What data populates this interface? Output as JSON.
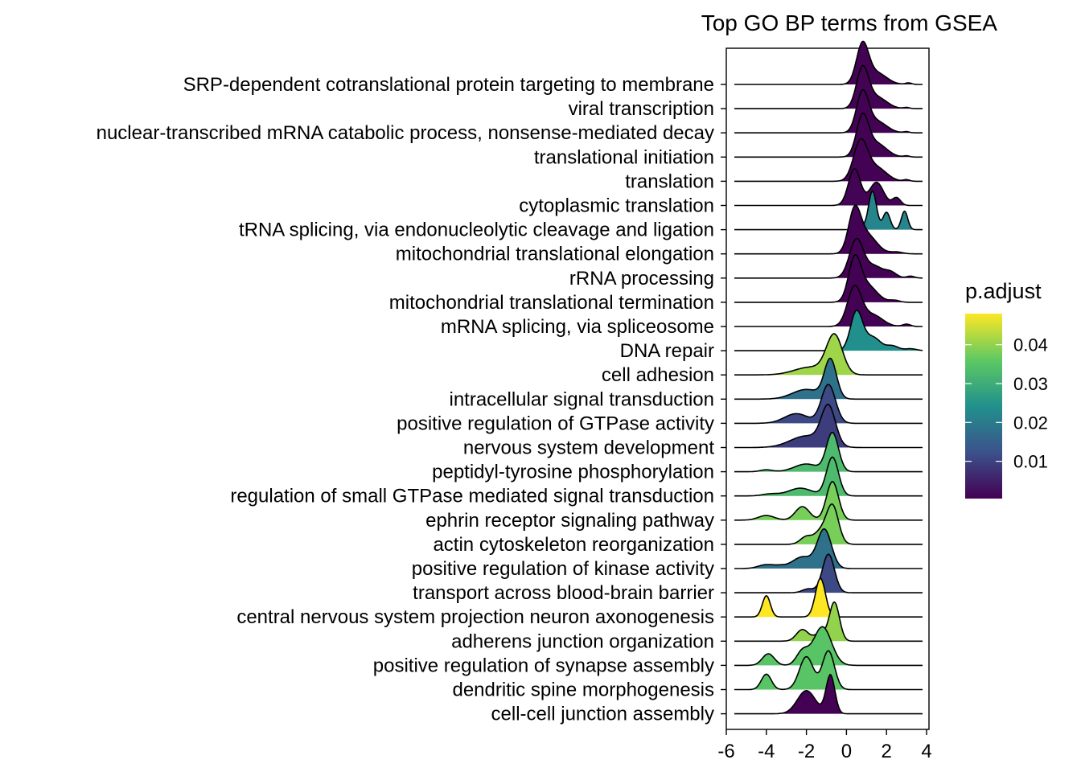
{
  "chart_data": {
    "type": "ridgeline",
    "title": "Top GO BP terms from GSEA",
    "xlabel": "",
    "ylabel": "",
    "xlim": [
      -6,
      4
    ],
    "x_ticks": [
      -6,
      -4,
      -2,
      0,
      2,
      4
    ],
    "x_tick_labels": [
      "-6",
      "-4",
      "-2",
      "0",
      "2",
      "4"
    ],
    "grid": false,
    "legend": {
      "title": "p.adjust",
      "position": "right",
      "colormap": "viridis",
      "range": [
        0.0004,
        0.048
      ],
      "ticks": [
        0.04,
        0.03,
        0.02,
        0.01
      ],
      "tick_labels": [
        "0.04",
        "0.03",
        "0.02",
        "0.01"
      ]
    },
    "series": [
      {
        "term": "SRP-dependent cotranslational protein targeting to membrane",
        "p_adjust": 0.0005,
        "peaks": [
          [
            0.8,
            0.3,
            1.0
          ],
          [
            1.5,
            0.5,
            0.3
          ],
          [
            3.1,
            0.15,
            0.04
          ]
        ]
      },
      {
        "term": "viral transcription",
        "p_adjust": 0.0005,
        "peaks": [
          [
            0.8,
            0.3,
            1.0
          ],
          [
            1.5,
            0.5,
            0.3
          ],
          [
            3.0,
            0.15,
            0.03
          ]
        ]
      },
      {
        "term": "nuclear-transcribed mRNA catabolic process, nonsense-mediated decay",
        "p_adjust": 0.0005,
        "peaks": [
          [
            0.8,
            0.3,
            1.0
          ],
          [
            1.5,
            0.5,
            0.3
          ],
          [
            3.0,
            0.15,
            0.03
          ]
        ]
      },
      {
        "term": "translational initiation",
        "p_adjust": 0.0005,
        "peaks": [
          [
            0.8,
            0.3,
            1.0
          ],
          [
            1.5,
            0.5,
            0.35
          ],
          [
            3.0,
            0.15,
            0.03
          ]
        ]
      },
      {
        "term": "translation",
        "p_adjust": 0.0005,
        "peaks": [
          [
            0.7,
            0.35,
            1.0
          ],
          [
            1.5,
            0.5,
            0.35
          ],
          [
            3.0,
            0.15,
            0.04
          ]
        ]
      },
      {
        "term": "cytoplasmic translation",
        "p_adjust": 0.0008,
        "peaks": [
          [
            0.4,
            0.3,
            0.95
          ],
          [
            1.5,
            0.35,
            0.6
          ],
          [
            2.5,
            0.2,
            0.2
          ]
        ]
      },
      {
        "term": "tRNA splicing, via endonucleolytic cleavage and ligation",
        "p_adjust": 0.022,
        "peaks": [
          [
            1.3,
            0.2,
            1.0
          ],
          [
            2.0,
            0.18,
            0.45
          ],
          [
            2.9,
            0.16,
            0.48
          ],
          [
            0.6,
            0.2,
            0.15
          ]
        ]
      },
      {
        "term": "mitochondrial translational elongation",
        "p_adjust": 0.0006,
        "peaks": [
          [
            0.4,
            0.3,
            1.0
          ],
          [
            1.0,
            0.5,
            0.5
          ],
          [
            2.5,
            0.3,
            0.05
          ]
        ]
      },
      {
        "term": "rRNA processing",
        "p_adjust": 0.0006,
        "peaks": [
          [
            0.5,
            0.35,
            1.0
          ],
          [
            1.4,
            0.4,
            0.3
          ],
          [
            2.2,
            0.3,
            0.15
          ],
          [
            3.2,
            0.2,
            0.05
          ]
        ]
      },
      {
        "term": "mitochondrial translational termination",
        "p_adjust": 0.0006,
        "peaks": [
          [
            0.4,
            0.3,
            1.0
          ],
          [
            1.0,
            0.5,
            0.45
          ],
          [
            2.4,
            0.25,
            0.05
          ]
        ]
      },
      {
        "term": "mRNA splicing, via spliceosome",
        "p_adjust": 0.0006,
        "peaks": [
          [
            0.4,
            0.35,
            1.0
          ],
          [
            1.3,
            0.5,
            0.3
          ],
          [
            3.0,
            0.2,
            0.06
          ]
        ]
      },
      {
        "term": "DNA repair",
        "p_adjust": 0.024,
        "peaks": [
          [
            0.5,
            0.3,
            1.0
          ],
          [
            1.3,
            0.4,
            0.35
          ],
          [
            2.3,
            0.3,
            0.12
          ],
          [
            3.2,
            0.3,
            0.05
          ]
        ]
      },
      {
        "term": "cell adhesion",
        "p_adjust": 0.041,
        "peaks": [
          [
            -0.6,
            0.4,
            1.0
          ],
          [
            -1.8,
            0.8,
            0.2
          ]
        ]
      },
      {
        "term": "intracellular signal transduction",
        "p_adjust": 0.018,
        "peaks": [
          [
            -0.8,
            0.3,
            1.0
          ],
          [
            -2.0,
            0.7,
            0.25
          ]
        ]
      },
      {
        "term": "positive regulation of GTPase activity",
        "p_adjust": 0.011,
        "peaks": [
          [
            -0.9,
            0.35,
            1.0
          ],
          [
            -2.5,
            0.6,
            0.25
          ]
        ]
      },
      {
        "term": "nervous system development",
        "p_adjust": 0.009,
        "peaks": [
          [
            -0.9,
            0.35,
            1.0
          ],
          [
            -2.0,
            0.8,
            0.3
          ]
        ]
      },
      {
        "term": "peptidyl-tyrosine phosphorylation",
        "p_adjust": 0.033,
        "peaks": [
          [
            -0.7,
            0.3,
            1.0
          ],
          [
            -2.0,
            0.6,
            0.2
          ],
          [
            -4.0,
            0.3,
            0.05
          ]
        ]
      },
      {
        "term": "regulation of small GTPase mediated signal transduction",
        "p_adjust": 0.033,
        "peaks": [
          [
            -0.7,
            0.3,
            1.0
          ],
          [
            -2.3,
            0.6,
            0.2
          ],
          [
            -3.8,
            0.4,
            0.05
          ]
        ]
      },
      {
        "term": "ephrin receptor signaling pathway",
        "p_adjust": 0.038,
        "peaks": [
          [
            -0.7,
            0.3,
            1.0
          ],
          [
            -2.2,
            0.35,
            0.35
          ],
          [
            -4.0,
            0.4,
            0.12
          ]
        ]
      },
      {
        "term": "actin cytoskeleton reorganization",
        "p_adjust": 0.038,
        "peaks": [
          [
            -0.7,
            0.3,
            1.0
          ],
          [
            -2.0,
            0.3,
            0.2
          ],
          [
            -1.3,
            0.3,
            0.3
          ]
        ]
      },
      {
        "term": "positive regulation of kinase activity",
        "p_adjust": 0.018,
        "peaks": [
          [
            -1.1,
            0.35,
            1.0
          ],
          [
            -2.2,
            0.5,
            0.3
          ],
          [
            -4.0,
            0.4,
            0.1
          ],
          [
            -3.3,
            0.3,
            0.05
          ]
        ]
      },
      {
        "term": "transport across blood-brain barrier",
        "p_adjust": 0.011,
        "peaks": [
          [
            -0.9,
            0.3,
            1.0
          ],
          [
            -1.9,
            0.3,
            0.1
          ]
        ]
      },
      {
        "term": "central nervous system projection neuron axonogenesis",
        "p_adjust": 0.048,
        "peaks": [
          [
            -1.3,
            0.25,
            1.0
          ],
          [
            -4.0,
            0.2,
            0.55
          ]
        ]
      },
      {
        "term": "adherens junction organization",
        "p_adjust": 0.04,
        "peaks": [
          [
            -0.6,
            0.25,
            1.0
          ],
          [
            -2.2,
            0.3,
            0.3
          ],
          [
            -1.3,
            0.3,
            0.2
          ]
        ]
      },
      {
        "term": "positive regulation of synapse assembly",
        "p_adjust": 0.035,
        "peaks": [
          [
            -1.2,
            0.45,
            1.0
          ],
          [
            -2.2,
            0.3,
            0.35
          ],
          [
            -3.9,
            0.3,
            0.3
          ]
        ]
      },
      {
        "term": "dendritic spine morphogenesis",
        "p_adjust": 0.035,
        "peaks": [
          [
            -2.0,
            0.35,
            0.85
          ],
          [
            -0.9,
            0.3,
            1.0
          ],
          [
            -4.0,
            0.25,
            0.4
          ]
        ]
      },
      {
        "term": "cell-cell junction assembly",
        "p_adjust": 0.0006,
        "peaks": [
          [
            -0.8,
            0.22,
            1.0
          ],
          [
            -2.0,
            0.45,
            0.6
          ]
        ]
      }
    ]
  }
}
